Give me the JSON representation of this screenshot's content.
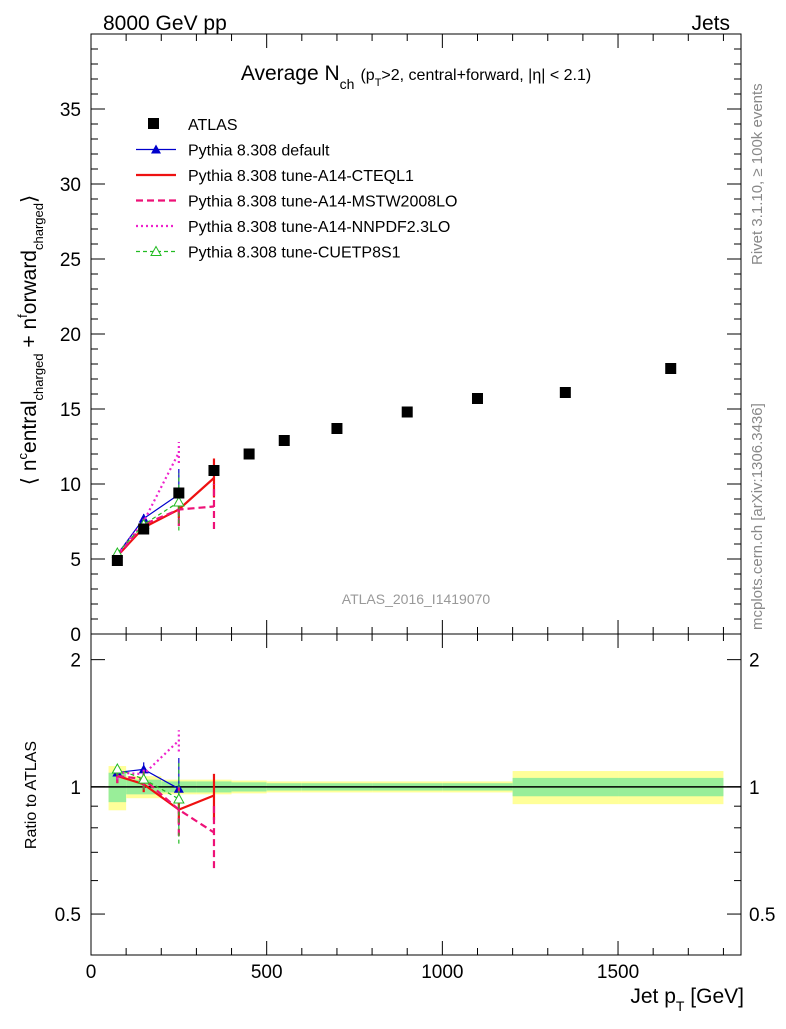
{
  "header": {
    "left": "8000 GeV pp",
    "right": "Jets"
  },
  "side_labels": {
    "rivet": "Rivet 3.1.10, ≥ 100k events",
    "mcplots": "mcplots.cern.ch [arXiv:1306.3436]"
  },
  "chart_data": {
    "type": "scatter",
    "title": {
      "main": "Average N",
      "main_sub": "ch",
      "cut_open": "(p",
      "cut_sub": "T",
      "cut_rest": ">2, central+forward, |η| < 2.1)"
    },
    "ylabel": {
      "part1": "⟨ n",
      "sup1": "c",
      "part2": "entral",
      "sub2": "charged",
      "part3": " + n",
      "sup3": "f",
      "part4": "orward",
      "sub4": "charged",
      "part5": "⟩"
    },
    "ratio_ylabel": "Ratio to ATLAS",
    "xlabel": {
      "main": "Jet p",
      "sub": "T",
      "unit": " [GeV]"
    },
    "watermark": "ATLAS_2016_I1419070",
    "xlim": [
      0,
      1850
    ],
    "ylim": [
      0,
      40
    ],
    "ratio_ylim": [
      0.4,
      2.3
    ],
    "x_ticks": [
      0,
      500,
      1000,
      1500
    ],
    "x_tick_labels": [
      "0",
      "500",
      "1000",
      "1500"
    ],
    "y_ticks": [
      0,
      5,
      10,
      15,
      20,
      25,
      30,
      35
    ],
    "y_tick_labels": [
      "0",
      "5",
      "10",
      "15",
      "20",
      "25",
      "30",
      "35"
    ],
    "ratio_ticks": [
      0.5,
      1,
      2
    ],
    "ratio_tick_labels": [
      "0.5",
      "1",
      "2"
    ],
    "reference": {
      "name": "ATLAS",
      "bins": [
        [
          50,
          100
        ],
        [
          100,
          200
        ],
        [
          200,
          300
        ],
        [
          300,
          400
        ],
        [
          400,
          500
        ],
        [
          500,
          600
        ],
        [
          600,
          800
        ],
        [
          800,
          1000
        ],
        [
          1000,
          1200
        ],
        [
          1200,
          1500
        ],
        [
          1500,
          1800
        ]
      ],
      "x": [
        75,
        150,
        250,
        350,
        450,
        550,
        700,
        900,
        1100,
        1350,
        1650
      ],
      "y": [
        4.9,
        7.0,
        9.4,
        10.9,
        12.0,
        12.9,
        13.7,
        14.8,
        15.7,
        16.1,
        17.7
      ],
      "band_inner": [
        0.08,
        0.04,
        0.03,
        0.03,
        0.025,
        0.02,
        0.02,
        0.02,
        0.02,
        0.05,
        0.05
      ],
      "band_outer": [
        0.12,
        0.06,
        0.04,
        0.04,
        0.035,
        0.03,
        0.03,
        0.03,
        0.03,
        0.09,
        0.09
      ]
    },
    "series": [
      {
        "name": "Pythia 8.308 default",
        "color": "#0000cc",
        "style": "solid",
        "width": 1.2,
        "marker": "triangle",
        "x": [
          75,
          150,
          250
        ],
        "y": [
          5.3,
          7.7,
          9.3
        ],
        "err": [
          0.2,
          0.3,
          1.7
        ]
      },
      {
        "name": "Pythia 8.308 tune-A14-CTEQL1",
        "color": "#ee1111",
        "style": "solid",
        "width": 2.2,
        "marker": "none",
        "x": [
          75,
          150,
          250,
          350
        ],
        "y": [
          5.2,
          7.1,
          8.3,
          10.4
        ],
        "err": [
          0.2,
          0.3,
          0.6,
          1.3
        ]
      },
      {
        "name": "Pythia 8.308 tune-A14-MSTW2008LO",
        "color": "#ee1177",
        "style": "dashed",
        "width": 2.2,
        "marker": "none",
        "x": [
          75,
          150,
          250,
          350
        ],
        "y": [
          5.2,
          7.3,
          8.3,
          8.5
        ],
        "err": [
          0.2,
          0.4,
          1.1,
          1.5
        ]
      },
      {
        "name": "Pythia 8.308 tune-A14-NNPDF2.3LO",
        "color": "#ee22cc",
        "style": "dotted",
        "width": 2.2,
        "marker": "none",
        "x": [
          75,
          150,
          250
        ],
        "y": [
          5.3,
          7.5,
          12.1
        ],
        "err": [
          0.2,
          0.3,
          0.7
        ]
      },
      {
        "name": "Pythia 8.308 tune-CUETP8S1",
        "color": "#22bb22",
        "style": "dashed-fine",
        "width": 1.2,
        "marker": "open-triangle",
        "x": [
          75,
          150,
          250
        ],
        "y": [
          5.4,
          7.3,
          8.8
        ],
        "err": [
          0.2,
          0.4,
          1.9
        ]
      }
    ]
  }
}
